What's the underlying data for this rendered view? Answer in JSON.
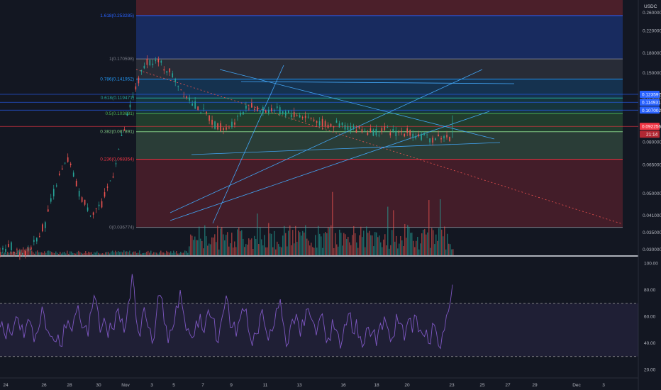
{
  "chart_data": {
    "type": "line",
    "quote_currency": "USDC",
    "price_axis": {
      "scale": "log",
      "ticks": [
        "0.260000",
        "0.220000",
        "0.180000",
        "0.150000",
        "0.120000",
        "0.080000",
        "0.065000",
        "0.050000",
        "0.041000",
        "0.035000",
        "0.030000"
      ]
    },
    "fib_levels": [
      {
        "label": "1.618(0.253285)",
        "price": 0.253285,
        "color": "#2962ff"
      },
      {
        "label": "1(0.170598)",
        "price": 0.170598,
        "color": "#787b86"
      },
      {
        "label": "0.786(0.141952)",
        "price": 0.141952,
        "color": "#2196f3"
      },
      {
        "label": "0.618(0.119471)",
        "price": 0.119471,
        "color": "#26a69a"
      },
      {
        "label": "0.5(0.103681)",
        "price": 0.103681,
        "color": "#4caf50"
      },
      {
        "label": "0.382(0.087891)",
        "price": 0.087891,
        "color": "#81c784"
      },
      {
        "label": "0.236(0.068354)",
        "price": 0.068354,
        "color": "#f23645"
      },
      {
        "label": "0(0.036774)",
        "price": 0.036774,
        "color": "#787b86"
      }
    ],
    "price_tags": [
      {
        "label": "0.123597",
        "price": 0.123597,
        "color": "#2962ff"
      },
      {
        "label": "0.114931",
        "price": 0.114931,
        "color": "#2962ff"
      },
      {
        "label": "0.107002",
        "price": 0.107002,
        "color": "#2962ff"
      },
      {
        "label": "0.092256",
        "price": 0.092256,
        "color": "#f23645"
      }
    ],
    "countdown": "21:14",
    "x_ticks": [
      "24",
      "26",
      "28",
      "30",
      "Nov",
      "3",
      "5",
      "7",
      "9",
      "11",
      "13",
      "16",
      "18",
      "20",
      "23",
      "25",
      "27",
      "29",
      "Dec",
      "3"
    ],
    "series": [
      {
        "values": [
          0.029,
          0.031,
          0.028,
          0.032,
          0.038,
          0.055,
          0.068,
          0.05,
          0.042,
          0.045,
          0.06,
          0.09,
          0.13,
          0.168,
          0.165,
          0.152,
          0.13,
          0.115,
          0.105,
          0.094,
          0.09,
          0.1,
          0.112,
          0.106,
          0.108,
          0.105,
          0.103,
          0.101,
          0.097,
          0.093,
          0.094,
          0.091,
          0.09,
          0.088,
          0.089,
          0.087,
          0.088,
          0.085,
          0.082,
          0.084,
          0.083
        ]
      }
    ],
    "rsi": {
      "axis_ticks": [
        "100.00",
        "80.00",
        "60.00",
        "40.00",
        "20.00"
      ],
      "upper_band": 70,
      "lower_band": 30,
      "values": [
        52,
        48,
        55,
        46,
        60,
        50,
        44,
        58,
        52,
        47,
        55,
        62,
        49,
        45,
        41,
        38,
        54,
        57,
        49,
        63,
        58,
        52,
        45,
        66,
        72,
        48,
        59,
        44,
        51,
        63,
        56,
        48,
        70,
        92,
        58,
        45,
        67,
        52,
        40,
        60,
        76,
        55,
        40,
        50,
        68,
        80,
        60,
        51,
        44,
        57,
        62,
        48,
        65,
        59,
        42,
        53,
        66,
        70,
        52,
        45,
        59,
        64,
        50,
        38,
        47,
        61,
        55,
        42,
        49,
        66,
        73,
        51,
        40,
        58,
        62,
        45,
        53,
        66,
        57,
        46,
        60,
        52,
        44,
        58,
        50,
        36,
        54,
        62,
        48,
        58,
        45,
        40,
        52,
        48,
        38,
        55,
        60,
        50,
        44,
        62,
        55,
        42,
        58,
        48,
        60,
        50,
        45,
        40,
        55,
        48,
        36,
        50,
        64,
        84
      ]
    }
  }
}
